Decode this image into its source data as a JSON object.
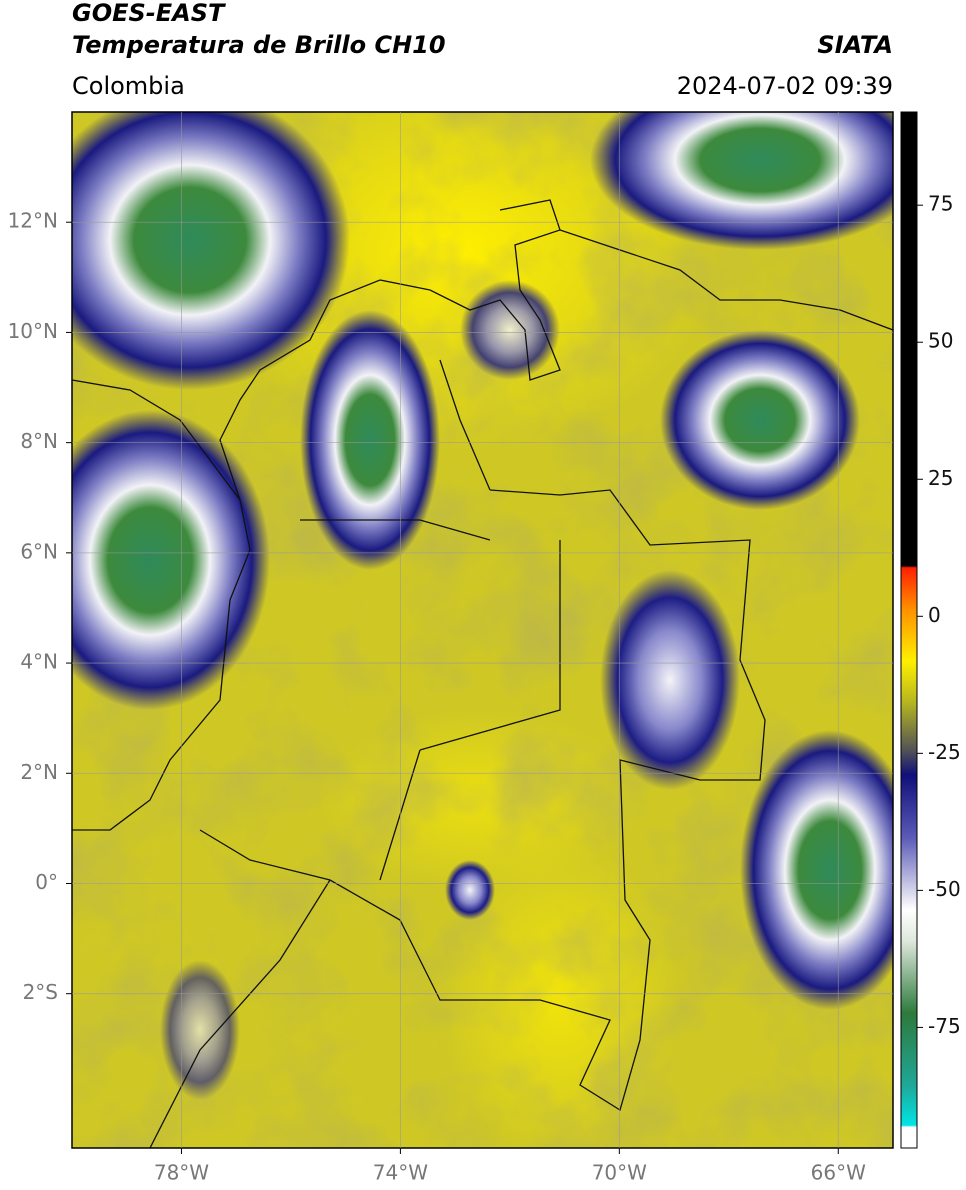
{
  "header": {
    "title": "GOES-EAST",
    "subtitle": "Temperatura de Brillo CH10",
    "source": "SIATA",
    "region": "Colombia",
    "datetime": "2024-07-02 09:39"
  },
  "map": {
    "xlim": [
      -80,
      -65
    ],
    "ylim": [
      -4.8,
      14
    ],
    "xticks": [
      {
        "value": -78,
        "label": "78°W"
      },
      {
        "value": -74,
        "label": "74°W"
      },
      {
        "value": -70,
        "label": "70°W"
      },
      {
        "value": -66,
        "label": "66°W"
      }
    ],
    "yticks": [
      {
        "value": 12,
        "label": "12°N"
      },
      {
        "value": 10,
        "label": "10°N"
      },
      {
        "value": 8,
        "label": "8°N"
      },
      {
        "value": 6,
        "label": "6°N"
      },
      {
        "value": 4,
        "label": "4°N"
      },
      {
        "value": 2,
        "label": "2°N"
      },
      {
        "value": 0,
        "label": "0°"
      },
      {
        "value": -2,
        "label": "2°S"
      }
    ]
  },
  "colorbar": {
    "lim": [
      -97,
      92
    ],
    "ticks": [
      75,
      50,
      25,
      0,
      -25,
      -50,
      -75
    ]
  }
}
